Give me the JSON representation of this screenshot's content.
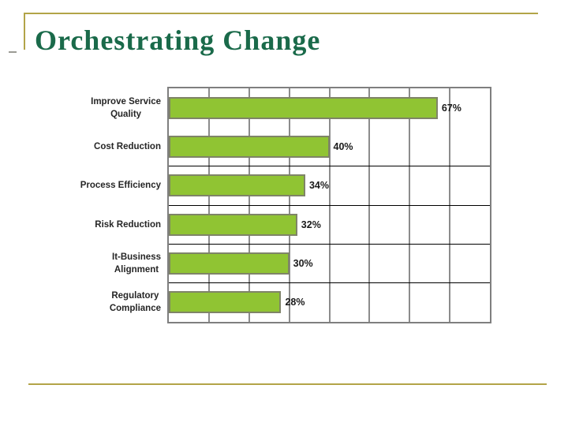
{
  "slide": {
    "title": "Orchestrating Change"
  },
  "colors": {
    "title": "#1a6a4a",
    "accent_line": "#b2a448",
    "bar_fill": "#90c433",
    "bar_border": "#7f8468",
    "gridline": "#8c8c8c",
    "plot_border": "#7f7f7f",
    "category_label": "#262626",
    "value_label": "#1a1a1a",
    "row_separator": "#000000"
  },
  "chart_data": {
    "type": "bar",
    "orientation": "horizontal",
    "title": "",
    "xlabel": "",
    "ylabel": "",
    "xlim": [
      0,
      80
    ],
    "gridline_interval": 10,
    "grid": "vertical gridlines every 10%, no axis tick labels shown",
    "legend": false,
    "categories": [
      "Improve Service Quality",
      "Cost Reduction",
      "Process Efficiency",
      "Risk Reduction",
      "It-Business Alignment",
      "Regulatory Compliance"
    ],
    "category_label_lines": [
      [
        "Improve Service",
        "Quality"
      ],
      [
        "Cost Reduction"
      ],
      [
        "Process Efficiency"
      ],
      [
        "Risk Reduction"
      ],
      [
        "It-Business",
        "Alignment"
      ],
      [
        "Regulatory",
        "Compliance"
      ]
    ],
    "values": [
      67,
      40,
      34,
      32,
      30,
      28
    ],
    "data_labels": [
      "67%",
      "40%",
      "34%",
      "32%",
      "30%",
      "28%"
    ],
    "separator_after_rows": [
      2,
      3,
      4,
      5
    ]
  }
}
